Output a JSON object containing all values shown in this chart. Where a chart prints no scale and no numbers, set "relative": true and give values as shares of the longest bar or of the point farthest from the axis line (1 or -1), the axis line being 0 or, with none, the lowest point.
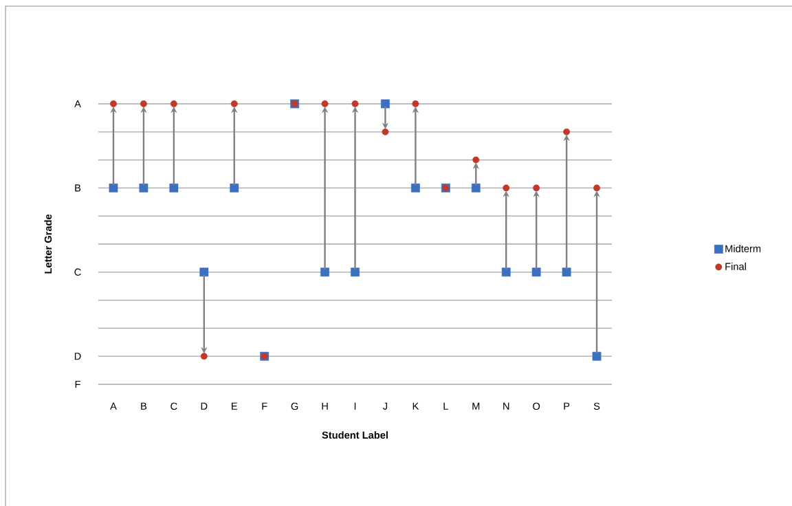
{
  "chart_data": {
    "type": "scatter",
    "xlabel": "Student Label",
    "ylabel": "Letter Grade",
    "relative": true,
    "categories": [
      "A",
      "B",
      "C",
      "D",
      "E",
      "F",
      "G",
      "H",
      "I",
      "J",
      "K",
      "L",
      "M",
      "N",
      "O",
      "P",
      "S"
    ],
    "series": [
      {
        "name": "Midterm",
        "color": "#3b6fbf",
        "marker": "square",
        "values": [
          0.7,
          0.7,
          0.7,
          0.4,
          0.7,
          0.1,
          1,
          0.4,
          0.4,
          1,
          0.7,
          0.7,
          0.7,
          0.4,
          0.4,
          0.4,
          0.1
        ]
      },
      {
        "name": "Final",
        "color": "#c0392b",
        "marker": "circle",
        "values": [
          1,
          1,
          1,
          0.1,
          1,
          0.1,
          1,
          1,
          1,
          0.9,
          1,
          0.7,
          0.8,
          0.7,
          0.7,
          0.9,
          0.7
        ]
      }
    ],
    "ref_lines": [
      {
        "axis": "y",
        "value": 1,
        "label": "A",
        "color": "#a6a6a6"
      },
      {
        "axis": "y",
        "value": 0.9,
        "color": "#a6a6a6"
      },
      {
        "axis": "y",
        "value": 0.8,
        "color": "#a6a6a6"
      },
      {
        "axis": "y",
        "value": 0.7,
        "label": "B",
        "color": "#a6a6a6"
      },
      {
        "axis": "y",
        "value": 0.6,
        "color": "#a6a6a6"
      },
      {
        "axis": "y",
        "value": 0.5,
        "color": "#a6a6a6"
      },
      {
        "axis": "y",
        "value": 0.4,
        "label": "C",
        "color": "#a6a6a6"
      },
      {
        "axis": "y",
        "value": 0.3,
        "color": "#a6a6a6"
      },
      {
        "axis": "y",
        "value": 0.2,
        "color": "#a6a6a6"
      },
      {
        "axis": "y",
        "value": 0.1,
        "label": "D",
        "color": "#a6a6a6"
      },
      {
        "axis": "y",
        "value": 0,
        "label": "F",
        "color": "#a6a6a6"
      }
    ],
    "legend": "right"
  }
}
